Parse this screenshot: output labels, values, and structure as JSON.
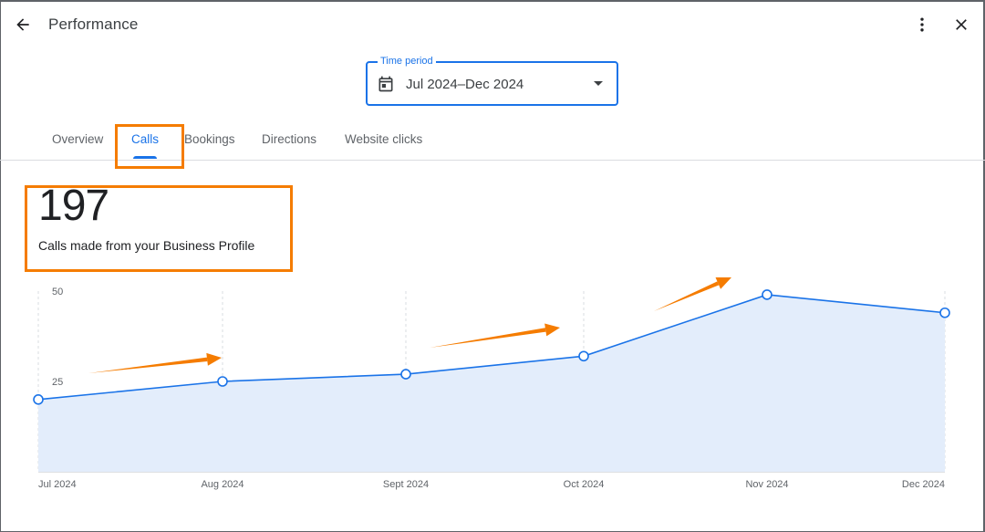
{
  "header": {
    "title": "Performance",
    "back_icon": "arrow-back-icon",
    "more_icon": "more-vertical-icon",
    "close_icon": "close-icon"
  },
  "time_period": {
    "label": "Time period",
    "value": "Jul 2024–Dec 2024",
    "icon": "calendar-icon"
  },
  "tabs": [
    {
      "label": "Overview",
      "active": false
    },
    {
      "label": "Calls",
      "active": true
    },
    {
      "label": "Bookings",
      "active": false
    },
    {
      "label": "Directions",
      "active": false
    },
    {
      "label": "Website clicks",
      "active": false
    }
  ],
  "metric": {
    "value": "197",
    "caption": "Calls made from your Business Profile"
  },
  "colors": {
    "accent": "#1a73e8",
    "highlight": "#f57c00",
    "area_fill": "#e3edfb"
  },
  "chart_data": {
    "type": "area",
    "x": [
      "Jul 2024",
      "Aug 2024",
      "Sept 2024",
      "Oct 2024",
      "Nov 2024",
      "Dec 2024"
    ],
    "series": [
      {
        "values": [
          20,
          25,
          27,
          32,
          49,
          44
        ]
      }
    ],
    "y_ticks": [
      "25",
      "50"
    ],
    "ylim": [
      0,
      50
    ],
    "grid": "vertical dashed",
    "legend": "none"
  }
}
